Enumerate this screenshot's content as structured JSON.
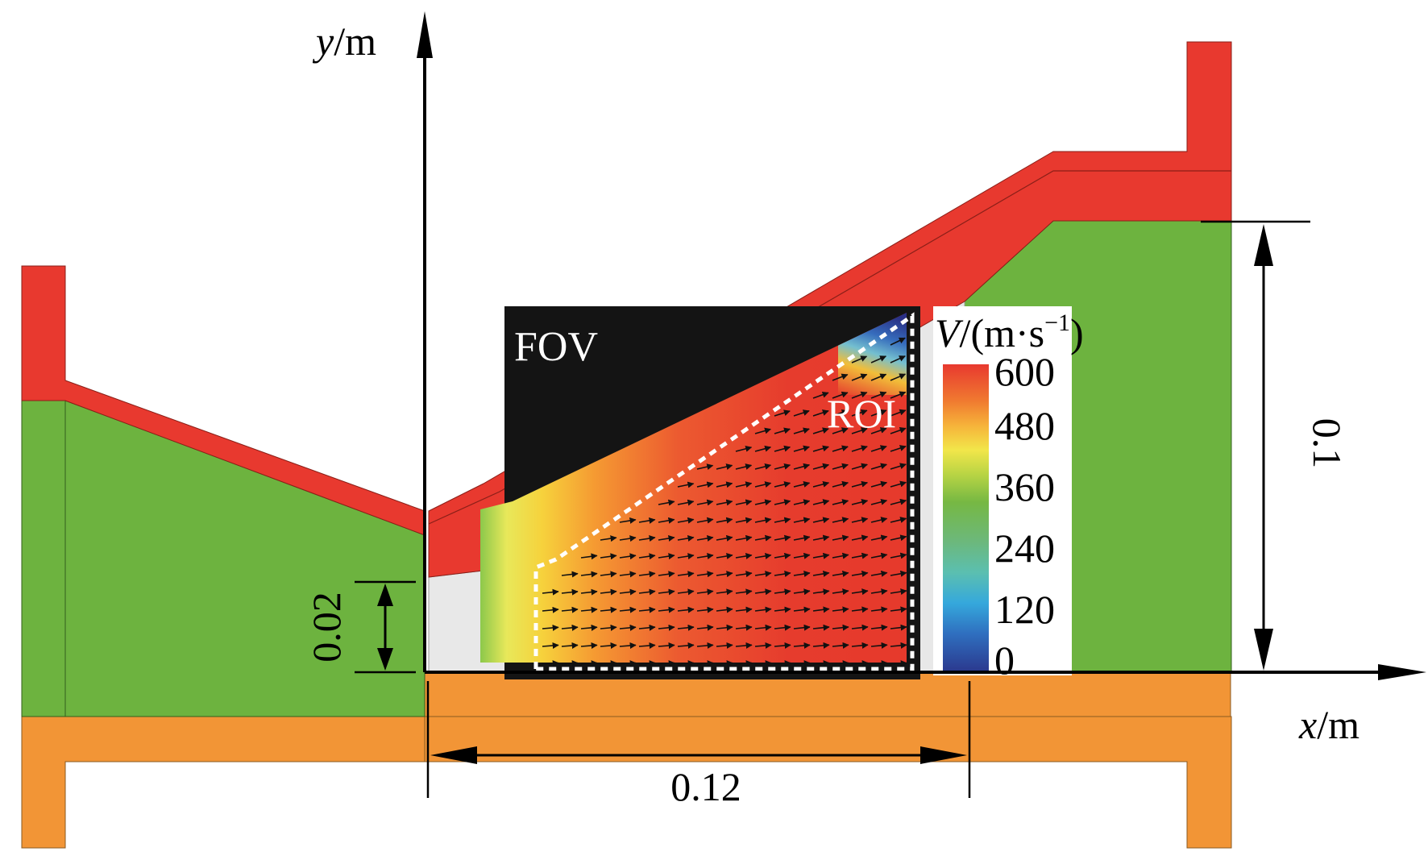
{
  "axes": {
    "y_label_var": "y",
    "y_label_unit": "/m",
    "x_label_var": "x",
    "x_label_unit": "/m"
  },
  "labels": {
    "fov": "FOV",
    "roi": "ROI"
  },
  "dimensions": {
    "throat_height": "0.02",
    "fov_width": "0.12",
    "outlet_height": "0.1"
  },
  "colorbar": {
    "title_var": "V",
    "title_unit": "/(m·s",
    "title_exp": "−1",
    "title_close": ")",
    "ticks": [
      "600",
      "480",
      "360",
      "240",
      "120",
      "0"
    ],
    "tick_values": [
      600,
      480,
      360,
      240,
      120,
      0
    ],
    "range": [
      0,
      600
    ],
    "colormap": "jet"
  },
  "colors": {
    "wall_upper": "#e8392f",
    "fluid": "#6db33f",
    "wall_lower": "#f29536",
    "window": "#e8e8e8",
    "fov_background": "#141414",
    "axis": "#000000"
  }
}
